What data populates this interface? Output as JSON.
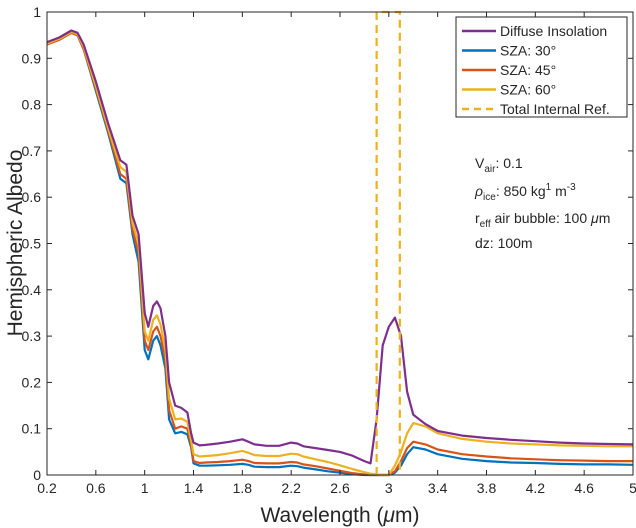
{
  "chart_data": {
    "type": "line",
    "title": "",
    "xlabel_main": "Wavelength (",
    "xlabel_mu": "μ",
    "xlabel_end": "m)",
    "ylabel": "Hemispheric Albedo",
    "xlim": [
      0.2,
      5
    ],
    "ylim": [
      0,
      1
    ],
    "x_ticks": [
      0.2,
      0.6,
      1,
      1.4,
      1.8,
      2.2,
      2.6,
      3,
      3.4,
      3.8,
      4.2,
      4.6,
      5
    ],
    "x_tick_labels": [
      "0.2",
      "0.6",
      "1",
      "1.4",
      "1.8",
      "2.2",
      "2.6",
      "3",
      "3.4",
      "3.8",
      "4.2",
      "4.6",
      "5"
    ],
    "y_ticks": [
      0,
      0.1,
      0.2,
      0.3,
      0.4,
      0.5,
      0.6,
      0.7,
      0.8,
      0.9,
      1
    ],
    "y_tick_labels": [
      "0",
      "0.1",
      "0.2",
      "0.3",
      "0.4",
      "0.5",
      "0.6",
      "0.7",
      "0.8",
      "0.9",
      "1"
    ],
    "grid": false,
    "legend_position": "top-right",
    "x": [
      0.2,
      0.3,
      0.4,
      0.45,
      0.5,
      0.6,
      0.7,
      0.8,
      0.85,
      0.9,
      0.95,
      1.0,
      1.03,
      1.07,
      1.1,
      1.13,
      1.17,
      1.2,
      1.25,
      1.3,
      1.35,
      1.38,
      1.4,
      1.45,
      1.5,
      1.6,
      1.7,
      1.8,
      1.85,
      1.9,
      2.0,
      2.1,
      2.2,
      2.25,
      2.3,
      2.4,
      2.5,
      2.6,
      2.7,
      2.8,
      2.85,
      2.9,
      2.95,
      3.0,
      3.05,
      3.1,
      3.15,
      3.2,
      3.3,
      3.4,
      3.6,
      3.8,
      4.0,
      4.2,
      4.4,
      4.6,
      4.8,
      5.0
    ],
    "series": [
      {
        "name": "Diffuse Insolation",
        "color": "#7E2F8E",
        "values": [
          0.935,
          0.945,
          0.96,
          0.955,
          0.93,
          0.85,
          0.76,
          0.68,
          0.67,
          0.56,
          0.52,
          0.35,
          0.32,
          0.365,
          0.375,
          0.36,
          0.3,
          0.2,
          0.15,
          0.145,
          0.135,
          0.09,
          0.07,
          0.064,
          0.065,
          0.068,
          0.072,
          0.077,
          0.072,
          0.066,
          0.063,
          0.063,
          0.07,
          0.068,
          0.062,
          0.058,
          0.054,
          0.05,
          0.042,
          0.03,
          0.025,
          0.12,
          0.28,
          0.32,
          0.34,
          0.3,
          0.18,
          0.13,
          0.11,
          0.095,
          0.085,
          0.08,
          0.076,
          0.073,
          0.07,
          0.068,
          0.067,
          0.066
        ]
      },
      {
        "name": "SZA: 30°",
        "color": "#0072BD",
        "values": [
          0.93,
          0.94,
          0.955,
          0.95,
          0.92,
          0.83,
          0.74,
          0.64,
          0.63,
          0.52,
          0.46,
          0.27,
          0.25,
          0.29,
          0.3,
          0.28,
          0.23,
          0.12,
          0.09,
          0.093,
          0.088,
          0.06,
          0.025,
          0.02,
          0.02,
          0.021,
          0.022,
          0.024,
          0.022,
          0.018,
          0.017,
          0.017,
          0.02,
          0.019,
          0.016,
          0.012,
          0.008,
          0.005,
          0.002,
          0.0,
          0.0,
          0.0,
          0.0,
          0.0,
          0.005,
          0.02,
          0.045,
          0.06,
          0.055,
          0.045,
          0.035,
          0.03,
          0.027,
          0.026,
          0.024,
          0.023,
          0.023,
          0.022
        ]
      },
      {
        "name": "SZA: 45°",
        "color": "#D95319",
        "values": [
          0.93,
          0.94,
          0.955,
          0.95,
          0.92,
          0.835,
          0.745,
          0.65,
          0.64,
          0.53,
          0.48,
          0.29,
          0.27,
          0.31,
          0.32,
          0.3,
          0.25,
          0.14,
          0.1,
          0.105,
          0.1,
          0.065,
          0.03,
          0.026,
          0.027,
          0.028,
          0.03,
          0.033,
          0.03,
          0.026,
          0.025,
          0.025,
          0.028,
          0.027,
          0.023,
          0.019,
          0.014,
          0.009,
          0.004,
          0.001,
          0.0,
          0.0,
          0.0,
          0.0,
          0.008,
          0.03,
          0.058,
          0.072,
          0.066,
          0.055,
          0.045,
          0.04,
          0.036,
          0.034,
          0.032,
          0.031,
          0.03,
          0.03
        ]
      },
      {
        "name": "SZA: 60°",
        "color": "#EDB120",
        "values": [
          0.932,
          0.942,
          0.957,
          0.952,
          0.925,
          0.84,
          0.75,
          0.665,
          0.655,
          0.545,
          0.5,
          0.31,
          0.29,
          0.335,
          0.345,
          0.325,
          0.27,
          0.165,
          0.12,
          0.122,
          0.115,
          0.075,
          0.045,
          0.04,
          0.041,
          0.043,
          0.047,
          0.052,
          0.048,
          0.043,
          0.041,
          0.041,
          0.046,
          0.045,
          0.04,
          0.034,
          0.028,
          0.021,
          0.013,
          0.006,
          0.003,
          0.001,
          0.0,
          0.0,
          0.02,
          0.05,
          0.09,
          0.112,
          0.105,
          0.09,
          0.078,
          0.072,
          0.068,
          0.066,
          0.064,
          0.063,
          0.062,
          0.062
        ]
      }
    ],
    "reference": {
      "name": "Total Internal Ref.",
      "color": "#EDB120",
      "x_low": 2.9,
      "x_high": 3.09,
      "y_top": 1
    },
    "annotations": [
      {
        "base": "V",
        "sub": "air",
        "rest": ": 0.1"
      },
      {
        "greek": "ρ",
        "sub": "ice",
        "rest_a": ": 850 kg",
        "sup1": "1",
        "rest_b": " m",
        "sup2": "-3"
      },
      {
        "base": "r",
        "sub": "eff",
        "rest_a": " air bubble: 100 ",
        "greek": "μ",
        "rest_b": "m"
      },
      {
        "text": "dz: 100m"
      }
    ]
  }
}
